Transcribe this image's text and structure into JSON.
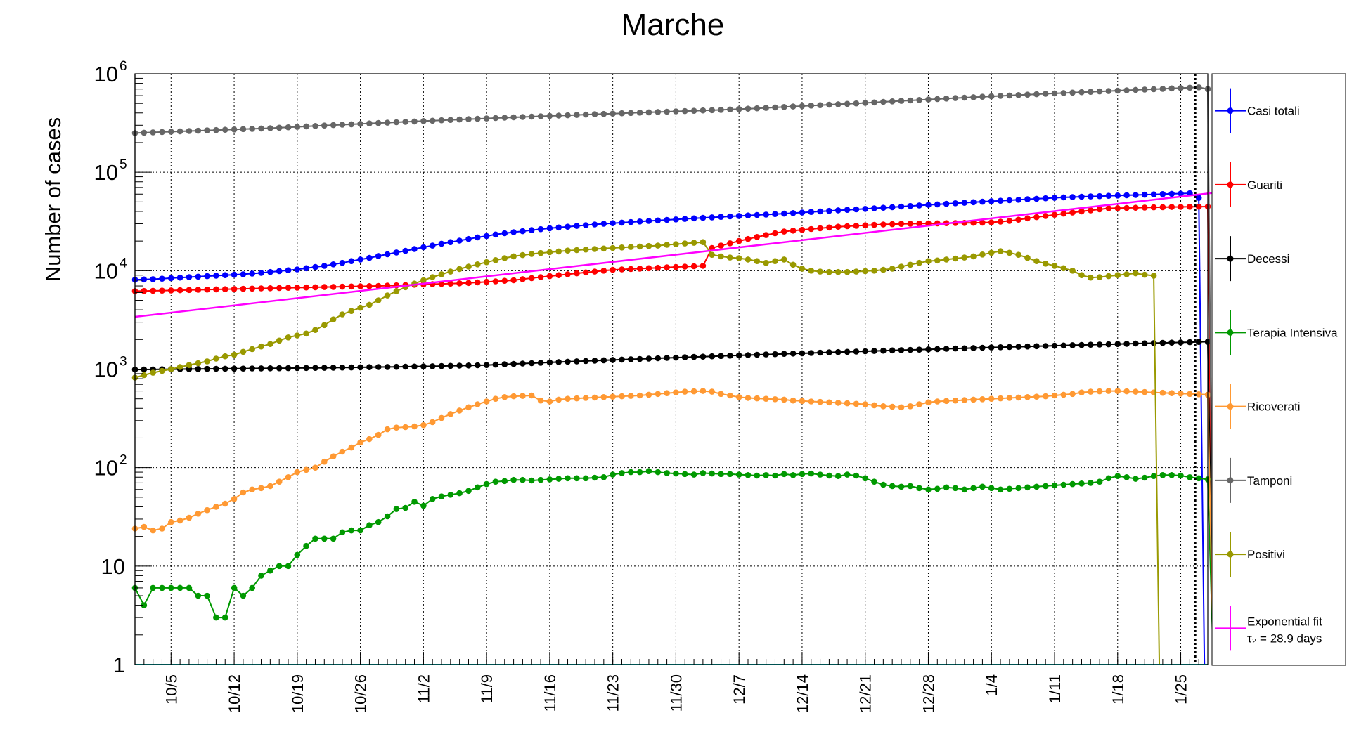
{
  "chart_data": {
    "type": "line",
    "title": "Marche",
    "ylabel": "Number of cases",
    "xlabel": "",
    "yscale": "log",
    "ylim": [
      1,
      1000000
    ],
    "grid": true,
    "legend_position": "right",
    "y_ticks": [
      {
        "value": 1000000,
        "base": "10",
        "exp": "6"
      },
      {
        "value": 100000,
        "base": "10",
        "exp": "5"
      },
      {
        "value": 10000,
        "base": "10",
        "exp": "4"
      },
      {
        "value": 1000,
        "base": "10",
        "exp": "3"
      },
      {
        "value": 100,
        "base": "10",
        "exp": "2"
      },
      {
        "value": 10,
        "base": "10",
        "exp": ""
      },
      {
        "value": 1,
        "base": "1",
        "exp": ""
      }
    ],
    "x_ticks": [
      "10/5",
      "10/12",
      "10/19",
      "10/26",
      "11/2",
      "11/9",
      "11/16",
      "11/23",
      "11/30",
      "12/7",
      "12/14",
      "12/21",
      "12/28",
      "1/4",
      "1/11",
      "1/18",
      "1/25"
    ],
    "x_start": "2020-10-01",
    "x_end": "2021-01-28",
    "vline_date": "2021-01-27",
    "series": [
      {
        "name": "Casi totali",
        "color": "#0000ff",
        "values": [
          8100,
          8150,
          8200,
          8300,
          8400,
          8500,
          8600,
          8700,
          8800,
          8900,
          9000,
          9100,
          9200,
          9350,
          9500,
          9700,
          9900,
          10100,
          10300,
          10600,
          10900,
          11200,
          11600,
          12000,
          12500,
          13000,
          13500,
          14100,
          14700,
          15300,
          15900,
          16600,
          17300,
          18000,
          18800,
          19500,
          20200,
          21000,
          21800,
          22500,
          23300,
          24000,
          24600,
          25200,
          25800,
          26400,
          27000,
          27500,
          28000,
          28500,
          29000,
          29500,
          30000,
          30400,
          30800,
          31200,
          31600,
          32000,
          32400,
          32800,
          33200,
          33600,
          34000,
          34400,
          34800,
          35200,
          35600,
          36000,
          36400,
          36800,
          37200,
          37600,
          38000,
          38500,
          39000,
          39500,
          40000,
          40500,
          41000,
          41500,
          42000,
          42500,
          43000,
          43600,
          44200,
          44800,
          45400,
          46000,
          46600,
          47200,
          47800,
          48400,
          49000,
          49600,
          50200,
          50800,
          51400,
          52000,
          52600,
          53200,
          53800,
          54400,
          55000,
          55600,
          56000,
          56400,
          56800,
          57200,
          57600,
          58000,
          58400,
          58800,
          59200,
          59600,
          60000,
          60400,
          60800,
          61200,
          55000
        ]
      },
      {
        "name": "Guariti",
        "color": "#ff0000",
        "values": [
          6200,
          6220,
          6250,
          6280,
          6310,
          6340,
          6370,
          6400,
          6430,
          6460,
          6490,
          6520,
          6550,
          6580,
          6610,
          6640,
          6670,
          6700,
          6730,
          6760,
          6790,
          6820,
          6850,
          6880,
          6910,
          6940,
          6970,
          7000,
          7050,
          7100,
          7150,
          7200,
          7250,
          7300,
          7350,
          7400,
          7450,
          7500,
          7600,
          7700,
          7800,
          7900,
          8000,
          8200,
          8400,
          8600,
          8800,
          9000,
          9200,
          9400,
          9600,
          9800,
          10000,
          10200,
          10300,
          10400,
          10500,
          10600,
          10700,
          10800,
          10900,
          11000,
          11100,
          11200,
          17000,
          18000,
          19000,
          20000,
          21000,
          22000,
          23000,
          24000,
          25000,
          25500,
          26000,
          26500,
          27000,
          27500,
          28000,
          28300,
          28600,
          28900,
          29200,
          29500,
          29700,
          29900,
          30000,
          30100,
          30200,
          30300,
          30400,
          30500,
          30600,
          30700,
          30800,
          31000,
          31500,
          32000,
          33000,
          34000,
          35000,
          36000,
          37000,
          38000,
          39000,
          40000,
          41000,
          42000,
          43000,
          43200,
          43400,
          43600,
          43800,
          44000,
          44200,
          44400,
          44500,
          44600,
          44700,
          44800
        ]
      },
      {
        "name": "Decessi",
        "color": "#000000",
        "values": [
          990,
          992,
          994,
          996,
          998,
          1000,
          1002,
          1004,
          1006,
          1008,
          1010,
          1012,
          1014,
          1016,
          1018,
          1020,
          1022,
          1024,
          1026,
          1028,
          1030,
          1032,
          1035,
          1038,
          1041,
          1044,
          1047,
          1050,
          1053,
          1056,
          1059,
          1062,
          1066,
          1070,
          1075,
          1080,
          1085,
          1090,
          1095,
          1100,
          1110,
          1120,
          1130,
          1140,
          1150,
          1160,
          1170,
          1180,
          1190,
          1200,
          1210,
          1220,
          1230,
          1240,
          1250,
          1260,
          1270,
          1280,
          1290,
          1300,
          1310,
          1320,
          1330,
          1340,
          1350,
          1360,
          1370,
          1380,
          1390,
          1400,
          1410,
          1420,
          1430,
          1440,
          1450,
          1460,
          1470,
          1480,
          1490,
          1500,
          1510,
          1520,
          1530,
          1540,
          1550,
          1560,
          1570,
          1580,
          1590,
          1600,
          1610,
          1620,
          1630,
          1640,
          1650,
          1660,
          1670,
          1680,
          1690,
          1700,
          1710,
          1720,
          1730,
          1740,
          1750,
          1760,
          1770,
          1780,
          1790,
          1800,
          1810,
          1820,
          1830,
          1840,
          1850,
          1860,
          1870,
          1880,
          1890,
          1900
        ]
      },
      {
        "name": "Terapia Intensiva",
        "color": "#009900",
        "values": [
          6,
          4,
          6,
          6,
          6,
          6,
          6,
          5,
          5,
          3,
          3,
          6,
          5,
          6,
          8,
          9,
          10,
          10,
          13,
          16,
          19,
          19,
          19,
          22,
          23,
          23,
          26,
          28,
          32,
          38,
          39,
          45,
          41,
          48,
          51,
          53,
          55,
          58,
          63,
          68,
          72,
          73,
          75,
          75,
          74,
          75,
          76,
          77,
          78,
          78,
          78,
          79,
          80,
          85,
          88,
          90,
          90,
          92,
          90,
          88,
          87,
          86,
          85,
          88,
          87,
          86,
          86,
          85,
          84,
          83,
          84,
          83,
          86,
          84,
          86,
          87,
          85,
          83,
          82,
          85,
          83,
          78,
          72,
          67,
          65,
          64,
          65,
          62,
          60,
          61,
          63,
          62,
          60,
          62,
          64,
          62,
          60,
          61,
          62,
          63,
          64,
          65,
          66,
          67,
          68,
          69,
          70,
          72,
          78,
          82,
          80,
          77,
          79,
          82,
          84,
          84,
          83,
          80,
          78,
          76
        ]
      },
      {
        "name": "Ricoverati",
        "color": "#ff9933",
        "values": [
          24,
          25,
          23,
          24,
          28,
          29,
          31,
          34,
          37,
          40,
          43,
          48,
          56,
          60,
          62,
          65,
          72,
          80,
          90,
          95,
          100,
          115,
          130,
          145,
          160,
          180,
          195,
          215,
          245,
          255,
          258,
          262,
          270,
          290,
          320,
          350,
          380,
          410,
          440,
          470,
          500,
          520,
          530,
          535,
          540,
          480,
          470,
          490,
          500,
          505,
          510,
          515,
          520,
          525,
          530,
          535,
          540,
          550,
          560,
          570,
          580,
          590,
          595,
          600,
          590,
          560,
          540,
          520,
          510,
          505,
          500,
          495,
          490,
          480,
          475,
          470,
          465,
          460,
          455,
          450,
          445,
          440,
          430,
          420,
          415,
          410,
          420,
          440,
          460,
          470,
          475,
          480,
          485,
          490,
          495,
          500,
          505,
          510,
          515,
          520,
          525,
          530,
          540,
          550,
          560,
          580,
          590,
          595,
          600,
          600,
          595,
          590,
          585,
          580,
          575,
          570,
          565,
          560,
          555,
          550
        ]
      },
      {
        "name": "Tamponi",
        "color": "#666666",
        "values": [
          250000,
          252000,
          254000,
          256000,
          258000,
          260000,
          262000,
          264000,
          266000,
          268000,
          270000,
          272000,
          274000,
          276000,
          278000,
          280000,
          283000,
          286000,
          289000,
          292000,
          295000,
          298000,
          301000,
          304000,
          307000,
          310000,
          313000,
          316000,
          319000,
          322000,
          325000,
          328000,
          331000,
          334000,
          337000,
          340000,
          343000,
          346000,
          349000,
          352000,
          355000,
          358000,
          361000,
          364000,
          367000,
          370000,
          373000,
          376000,
          379000,
          382000,
          385000,
          388000,
          391000,
          394000,
          397000,
          400000,
          403000,
          406000,
          409000,
          412000,
          415000,
          418000,
          421000,
          424000,
          427000,
          430000,
          434000,
          438000,
          442000,
          446000,
          450000,
          455000,
          460000,
          465000,
          470000,
          475000,
          480000,
          485000,
          490000,
          495000,
          500000,
          506000,
          512000,
          518000,
          524000,
          530000,
          536000,
          542000,
          548000,
          554000,
          560000,
          566000,
          572000,
          578000,
          584000,
          590000,
          596000,
          602000,
          608000,
          614000,
          620000,
          626000,
          632000,
          638000,
          644000,
          650000,
          656000,
          662000,
          668000,
          674000,
          680000,
          686000,
          692000,
          698000,
          704000,
          710000,
          716000,
          722000,
          728000,
          700000
        ]
      },
      {
        "name": "Positivi",
        "color": "#999900",
        "values": [
          820,
          870,
          920,
          960,
          1000,
          1050,
          1100,
          1150,
          1200,
          1280,
          1350,
          1400,
          1500,
          1600,
          1700,
          1800,
          1950,
          2100,
          2200,
          2300,
          2500,
          2800,
          3200,
          3600,
          3900,
          4200,
          4500,
          5000,
          5600,
          6200,
          6800,
          7400,
          8000,
          8600,
          9200,
          9800,
          10400,
          11000,
          11600,
          12200,
          12800,
          13400,
          14000,
          14400,
          14800,
          15100,
          15400,
          15700,
          16000,
          16200,
          16400,
          16600,
          16800,
          17000,
          17200,
          17400,
          17600,
          17800,
          18000,
          18300,
          18600,
          18900,
          19200,
          19500,
          14500,
          14000,
          13600,
          13400,
          13000,
          12500,
          12000,
          12500,
          13000,
          11500,
          10500,
          10000,
          9800,
          9700,
          9700,
          9700,
          9800,
          9900,
          10000,
          10200,
          10500,
          11000,
          11500,
          12000,
          12500,
          12700,
          13000,
          13300,
          13600,
          14000,
          14600,
          15200,
          15800,
          15200,
          14500,
          13500,
          12500,
          11800,
          11200,
          10600,
          10000,
          9000,
          8500,
          8600,
          8800,
          9000,
          9200,
          9400,
          9100,
          8900
        ]
      },
      {
        "name": "Exponential fit",
        "name2": "τ₂ = 28.9 days",
        "color": "#ff00ff",
        "fit": {
          "y_start": 3400,
          "y_end": 62000
        }
      }
    ]
  }
}
